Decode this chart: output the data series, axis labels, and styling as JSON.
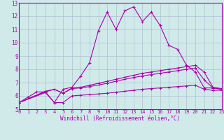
{
  "xlabel": "Windchill (Refroidissement éolien,°C)",
  "xlim": [
    0,
    23
  ],
  "ylim": [
    5,
    13
  ],
  "xticks": [
    0,
    1,
    2,
    3,
    4,
    5,
    6,
    7,
    8,
    9,
    10,
    11,
    12,
    13,
    14,
    15,
    16,
    17,
    18,
    19,
    20,
    21,
    22,
    23
  ],
  "yticks": [
    5,
    6,
    7,
    8,
    9,
    10,
    11,
    12,
    13
  ],
  "background_color": "#d0eaea",
  "grid_color": "#b0bfd0",
  "line_color": "#aa00aa",
  "line1_x": [
    0,
    1,
    2,
    3,
    4,
    5,
    6,
    7,
    8,
    9,
    10,
    11,
    12,
    13,
    14,
    15,
    16,
    17,
    18,
    19,
    20,
    21,
    22,
    23
  ],
  "line1_y": [
    5.5,
    5.9,
    6.3,
    6.3,
    5.5,
    6.5,
    6.65,
    7.5,
    8.5,
    10.9,
    12.3,
    11.0,
    12.4,
    12.7,
    11.6,
    12.3,
    11.3,
    9.8,
    9.5,
    8.3,
    7.8,
    6.6,
    6.6,
    6.5
  ],
  "line2_x": [
    0,
    3,
    4,
    5,
    6,
    7,
    8,
    9,
    10,
    11,
    12,
    13,
    14,
    15,
    16,
    17,
    18,
    19,
    20,
    21,
    22,
    23
  ],
  "line2_y": [
    5.5,
    6.35,
    6.5,
    6.2,
    6.6,
    6.65,
    6.8,
    6.95,
    7.1,
    7.25,
    7.4,
    7.55,
    7.7,
    7.8,
    7.9,
    8.0,
    8.1,
    8.2,
    8.3,
    7.8,
    6.65,
    6.55
  ],
  "line3_x": [
    0,
    3,
    4,
    5,
    6,
    7,
    8,
    9,
    10,
    11,
    12,
    13,
    14,
    15,
    16,
    17,
    18,
    19,
    20,
    21,
    22,
    23
  ],
  "line3_y": [
    5.5,
    6.3,
    6.5,
    6.2,
    6.55,
    6.6,
    6.7,
    6.82,
    6.95,
    7.1,
    7.25,
    7.38,
    7.5,
    7.6,
    7.7,
    7.8,
    7.9,
    8.0,
    8.1,
    7.2,
    6.6,
    6.5
  ],
  "line4_x": [
    0,
    3,
    4,
    5,
    6,
    7,
    8,
    9,
    10,
    11,
    12,
    13,
    14,
    15,
    16,
    17,
    18,
    19,
    20,
    21,
    22,
    23
  ],
  "line4_y": [
    5.5,
    6.25,
    5.5,
    5.5,
    6.0,
    6.05,
    6.1,
    6.15,
    6.2,
    6.28,
    6.35,
    6.42,
    6.5,
    6.55,
    6.6,
    6.65,
    6.7,
    6.75,
    6.8,
    6.5,
    6.42,
    6.42
  ]
}
